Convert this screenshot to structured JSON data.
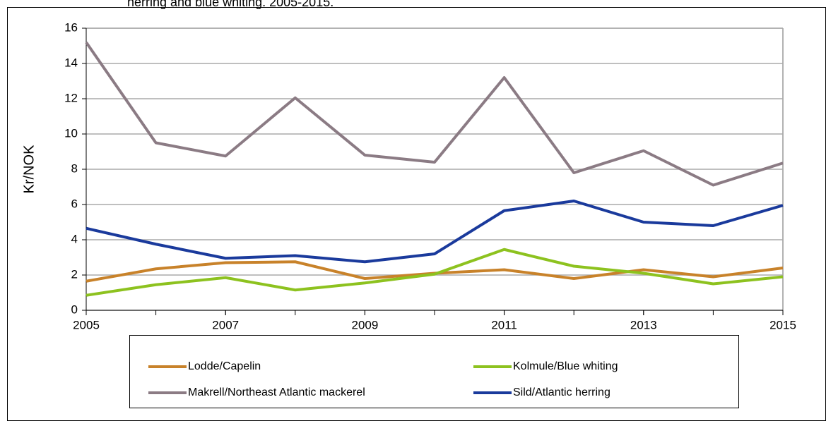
{
  "chart_data": {
    "type": "line",
    "title": "herring and blue whiting. 2005-2015.",
    "y_label": "Kr/NOK",
    "x": [
      2005,
      2006,
      2007,
      2008,
      2009,
      2010,
      2011,
      2012,
      2013,
      2014,
      2015
    ],
    "xlim": [
      2005,
      2015
    ],
    "xticks": [
      2005,
      2007,
      2009,
      2011,
      2013,
      2015
    ],
    "ylim": [
      0,
      16
    ],
    "yticks": [
      0,
      2,
      4,
      6,
      8,
      10,
      12,
      14,
      16
    ],
    "grid": true,
    "legend": "bottom",
    "series": [
      {
        "name": "Lodde/Capelin",
        "color": "#c8822a",
        "values": [
          1.65,
          2.35,
          2.7,
          2.75,
          1.8,
          2.1,
          2.3,
          1.8,
          2.3,
          1.9,
          2.4
        ]
      },
      {
        "name": "Kolmule/Blue whiting",
        "color": "#8dc21f",
        "values": [
          0.85,
          1.45,
          1.85,
          1.15,
          1.55,
          2.05,
          3.45,
          2.5,
          2.1,
          1.5,
          1.9
        ]
      },
      {
        "name": "Makrell/Northeast Atlantic mackerel",
        "color": "#8b7b84",
        "values": [
          15.2,
          9.5,
          8.75,
          12.05,
          8.8,
          8.4,
          13.2,
          7.8,
          9.05,
          7.1,
          8.35
        ]
      },
      {
        "name": "Sild/Atlantic herring",
        "color": "#1a3a9c",
        "values": [
          4.65,
          3.75,
          2.95,
          3.1,
          2.75,
          3.2,
          5.65,
          6.2,
          5.0,
          4.8,
          5.95
        ]
      }
    ]
  }
}
